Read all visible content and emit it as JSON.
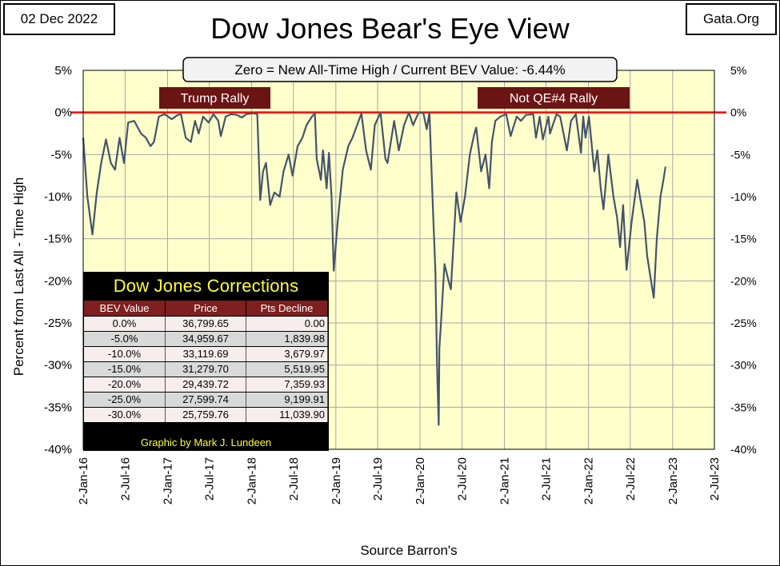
{
  "header": {
    "date": "02 Dec 2022",
    "site": "Gata.Org",
    "title": "Dow Jones Bear's Eye View"
  },
  "chart_data": {
    "type": "line",
    "title": "Dow Jones Bear's Eye View",
    "subtitle": "Zero = New All-Time High / Current BEV Value:  -6.44%",
    "ylabel": "Percent from Last All - Time High",
    "xlabel": "Source Barron's",
    "ylim": [
      -40,
      5
    ],
    "xlim": [
      "2016-01-02",
      "2023-07-02"
    ],
    "grid": true,
    "y_ticks_left": [
      "5%",
      "0%",
      "-5%",
      "-10%",
      "-15%",
      "-20%",
      "-25%",
      "-30%",
      "-35%",
      "-40%"
    ],
    "y_ticks_right": [
      "5%",
      "0%",
      "-5%",
      "-10%",
      "-15%",
      "-20%",
      "-25%",
      "-30%",
      "-35%",
      "-40%"
    ],
    "x_ticks": [
      "2-Jan-16",
      "2-Jul-16",
      "2-Jan-17",
      "2-Jul-17",
      "2-Jan-18",
      "2-Jul-18",
      "2-Jan-19",
      "2-Jul-19",
      "2-Jan-20",
      "2-Jul-20",
      "2-Jan-21",
      "2-Jul-21",
      "2-Jan-22",
      "2-Jul-22",
      "2-Jan-23",
      "2-Jul-23"
    ],
    "annotations": [
      "Trump Rally",
      "Not QE#4 Rally"
    ],
    "colors": {
      "plot_background": "#ffffcc",
      "series_line": "#44546a",
      "zero_line": "#ff0000",
      "annotation_background": "#6b1414",
      "annotation_text": "#ffffff"
    },
    "series": [
      {
        "x": [
          "2016-01-02",
          "2016-01-20",
          "2016-02-11",
          "2016-03-01",
          "2016-03-20",
          "2016-04-10",
          "2016-05-01",
          "2016-05-19",
          "2016-06-08",
          "2016-06-27",
          "2016-07-15",
          "2016-08-10",
          "2016-09-09",
          "2016-09-30",
          "2016-10-20",
          "2016-11-04",
          "2016-11-25",
          "2016-12-20",
          "2017-01-20",
          "2017-02-15",
          "2017-03-01",
          "2017-03-22",
          "2017-04-13",
          "2017-05-01",
          "2017-05-17",
          "2017-06-05",
          "2017-06-29",
          "2017-07-20",
          "2017-08-10",
          "2017-08-21",
          "2017-09-11",
          "2017-10-05",
          "2017-10-30",
          "2017-11-20",
          "2017-12-10",
          "2018-01-10",
          "2018-01-26",
          "2018-02-08",
          "2018-02-20",
          "2018-03-05",
          "2018-03-23",
          "2018-04-10",
          "2018-05-03",
          "2018-05-20",
          "2018-06-11",
          "2018-06-28",
          "2018-07-20",
          "2018-08-10",
          "2018-08-28",
          "2018-09-20",
          "2018-10-03",
          "2018-10-11",
          "2018-10-29",
          "2018-11-07",
          "2018-11-23",
          "2018-12-03",
          "2018-12-14",
          "2018-12-24",
          "2019-01-10",
          "2019-02-01",
          "2019-02-25",
          "2019-03-15",
          "2019-04-23",
          "2019-05-13",
          "2019-06-03",
          "2019-06-20",
          "2019-07-15",
          "2019-08-05",
          "2019-08-14",
          "2019-09-12",
          "2019-10-02",
          "2019-10-25",
          "2019-11-15",
          "2019-12-03",
          "2019-12-27",
          "2020-01-17",
          "2020-01-31",
          "2020-02-12",
          "2020-02-28",
          "2020-03-09",
          "2020-03-16",
          "2020-03-23",
          "2020-03-26",
          "2020-04-01",
          "2020-04-17",
          "2020-05-05",
          "2020-05-15",
          "2020-06-08",
          "2020-06-26",
          "2020-07-15",
          "2020-08-05",
          "2020-08-25",
          "2020-09-02",
          "2020-09-23",
          "2020-10-12",
          "2020-10-28",
          "2020-11-09",
          "2020-11-24",
          "2020-12-15",
          "2021-01-10",
          "2021-01-29",
          "2021-02-24",
          "2021-03-15",
          "2021-04-05",
          "2021-05-07",
          "2021-05-19",
          "2021-06-04",
          "2021-06-18",
          "2021-07-12",
          "2021-07-19",
          "2021-08-16",
          "2021-09-01",
          "2021-09-30",
          "2021-10-18",
          "2021-11-08",
          "2021-11-30",
          "2021-12-10",
          "2021-12-20",
          "2022-01-04",
          "2022-01-27",
          "2022-02-09",
          "2022-02-24",
          "2022-03-08",
          "2022-03-29",
          "2022-04-20",
          "2022-05-06",
          "2022-05-19",
          "2022-06-01",
          "2022-06-16",
          "2022-07-08",
          "2022-08-01",
          "2022-08-16",
          "2022-09-01",
          "2022-09-13",
          "2022-09-30",
          "2022-10-12",
          "2022-10-25",
          "2022-11-10",
          "2022-11-23",
          "2022-12-02"
        ],
        "y": [
          -3.0,
          -10.0,
          -14.5,
          -9.5,
          -6.0,
          -3.2,
          -6.0,
          -6.8,
          -3.0,
          -6.0,
          -1.2,
          -1.0,
          -2.5,
          -3.0,
          -4.0,
          -3.5,
          -0.5,
          -0.2,
          -0.8,
          -0.3,
          -0.2,
          -3.0,
          -3.5,
          -1.0,
          -2.5,
          -0.5,
          -1.2,
          -0.2,
          -1.0,
          -2.8,
          -0.5,
          -0.2,
          -0.3,
          -0.6,
          -0.2,
          -0.1,
          -0.2,
          -10.4,
          -7.0,
          -6.0,
          -11.0,
          -9.5,
          -10.0,
          -7.0,
          -5.0,
          -7.5,
          -4.0,
          -3.0,
          -1.5,
          -0.5,
          -0.1,
          -5.5,
          -8.0,
          -4.5,
          -9.0,
          -4.8,
          -10.0,
          -18.8,
          -13.0,
          -6.8,
          -4.0,
          -3.0,
          -0.1,
          -4.5,
          -6.8,
          -1.5,
          0.0,
          -5.5,
          -6.0,
          -1.0,
          -4.5,
          -1.5,
          0.0,
          -1.5,
          0.0,
          -0.1,
          -2.0,
          0.0,
          -12.0,
          -19.0,
          -30.0,
          -37.1,
          -28.0,
          -25.5,
          -18.0,
          -20.0,
          -21.0,
          -9.5,
          -13.0,
          -10.0,
          -5.0,
          -2.5,
          -1.8,
          -7.0,
          -5.0,
          -9.0,
          -3.5,
          -1.0,
          -0.5,
          -0.2,
          -2.8,
          -0.5,
          -1.0,
          -0.3,
          -0.2,
          -3.0,
          -0.5,
          -3.2,
          -0.5,
          -2.5,
          -0.2,
          -0.5,
          -4.5,
          -1.0,
          -0.2,
          -4.8,
          -0.5,
          -3.0,
          -0.5,
          -7.0,
          -4.5,
          -9.0,
          -11.5,
          -5.0,
          -10.0,
          -12.5,
          -16.0,
          -11.0,
          -18.7,
          -13.0,
          -8.0,
          -10.5,
          -13.0,
          -17.0,
          -20.0,
          -22.0,
          -15.0,
          -10.0,
          -8.0,
          -6.44
        ]
      }
    ]
  },
  "annotations": {
    "trump_rally": "Trump Rally",
    "not_qe4_rally": "Not QE#4 Rally"
  },
  "corrections_table": {
    "title": "Dow Jones Corrections",
    "headers": [
      "BEV Value",
      "Price",
      "Pts Decline"
    ],
    "rows": [
      [
        "0.0%",
        "36,799.65",
        "0.00"
      ],
      [
        "-5.0%",
        "34,959.67",
        "1,839.98"
      ],
      [
        "-10.0%",
        "33,119.69",
        "3,679.97"
      ],
      [
        "-15.0%",
        "31,279.70",
        "5,519.95"
      ],
      [
        "-20.0%",
        "29,439.72",
        "7,359.93"
      ],
      [
        "-25.0%",
        "27,599.74",
        "9,199.91"
      ],
      [
        "-30.0%",
        "25,759.76",
        "11,039.90"
      ]
    ],
    "credit": "Graphic by Mark J. Lundeen"
  }
}
